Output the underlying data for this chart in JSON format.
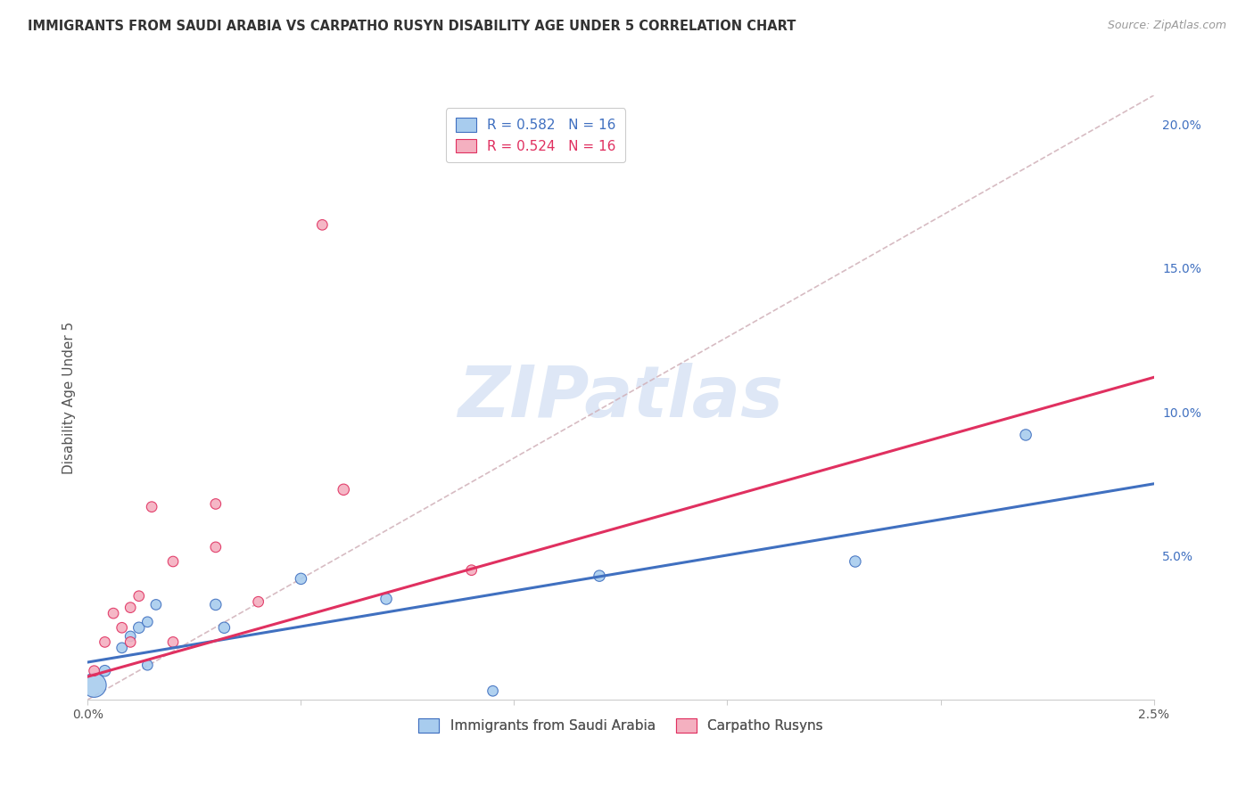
{
  "title": "IMMIGRANTS FROM SAUDI ARABIA VS CARPATHO RUSYN DISABILITY AGE UNDER 5 CORRELATION CHART",
  "source": "Source: ZipAtlas.com",
  "ylabel": "Disability Age Under 5",
  "xlim": [
    0.0,
    0.025
  ],
  "ylim": [
    0.0,
    0.21
  ],
  "xticks": [
    0.0,
    0.005,
    0.01,
    0.015,
    0.02,
    0.025
  ],
  "xticklabels": [
    "0.0%",
    "",
    "",
    "",
    "",
    "2.5%"
  ],
  "yticks_right": [
    0.0,
    0.05,
    0.1,
    0.15,
    0.2
  ],
  "yticklabels_right": [
    "",
    "5.0%",
    "10.0%",
    "15.0%",
    "20.0%"
  ],
  "legend_blue_r": "R = 0.582",
  "legend_blue_n": "N = 16",
  "legend_pink_r": "R = 0.524",
  "legend_pink_n": "N = 16",
  "blue_fill": "#A8CCEE",
  "pink_fill": "#F4B0C0",
  "blue_edge": "#4070C0",
  "pink_edge": "#E03060",
  "dashed_color": "#D0B0B8",
  "watermark": "ZIPatlas",
  "watermark_color": "#C8D8F0",
  "blue_x": [
    0.00015,
    0.0004,
    0.0008,
    0.001,
    0.0012,
    0.0014,
    0.0016,
    0.0014,
    0.003,
    0.0032,
    0.005,
    0.007,
    0.0095,
    0.012,
    0.018,
    0.022
  ],
  "blue_y": [
    0.005,
    0.01,
    0.018,
    0.022,
    0.025,
    0.027,
    0.033,
    0.012,
    0.033,
    0.025,
    0.042,
    0.035,
    0.003,
    0.043,
    0.048,
    0.092
  ],
  "blue_size": [
    380,
    80,
    70,
    70,
    80,
    70,
    70,
    70,
    80,
    80,
    80,
    80,
    70,
    80,
    80,
    80
  ],
  "pink_x": [
    0.00015,
    0.0004,
    0.0006,
    0.0008,
    0.001,
    0.001,
    0.0012,
    0.0015,
    0.002,
    0.002,
    0.003,
    0.004,
    0.006,
    0.003,
    0.009,
    0.0055
  ],
  "pink_y": [
    0.01,
    0.02,
    0.03,
    0.025,
    0.032,
    0.02,
    0.036,
    0.067,
    0.048,
    0.02,
    0.053,
    0.034,
    0.073,
    0.068,
    0.045,
    0.165
  ],
  "pink_size": [
    70,
    70,
    70,
    70,
    70,
    70,
    70,
    70,
    70,
    70,
    70,
    70,
    80,
    70,
    70,
    70
  ],
  "blue_line_x0": 0.0,
  "blue_line_y0": 0.013,
  "blue_line_x1": 0.025,
  "blue_line_y1": 0.075,
  "pink_line_x0": 0.0,
  "pink_line_y0": 0.008,
  "pink_line_x1": 0.025,
  "pink_line_y1": 0.112
}
